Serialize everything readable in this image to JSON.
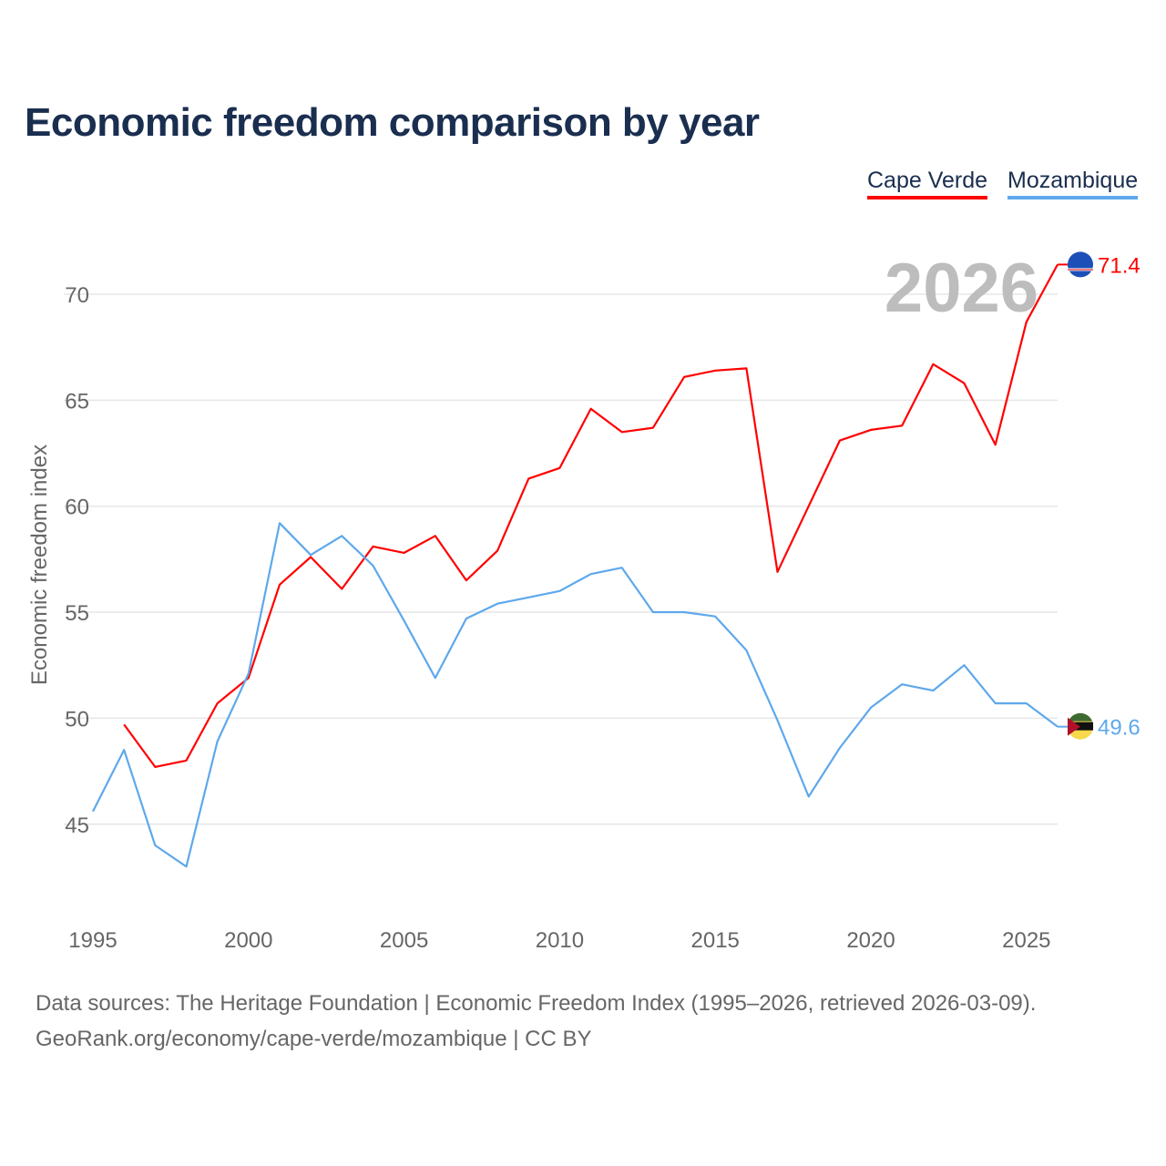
{
  "title": "Economic freedom comparison by year",
  "legend": [
    {
      "name": "Cape Verde",
      "color": "#ff0000"
    },
    {
      "name": "Mozambique",
      "color": "#5ea8ec"
    }
  ],
  "footer": {
    "line1": "Data sources: The Heritage Foundation | Economic Freedom Index (1995–2026, retrieved 2026-03-09).",
    "line2": "GeoRank.org/economy/cape-verde/mozambique | CC BY"
  },
  "chart_data": {
    "type": "line",
    "title": "Economic freedom comparison by year",
    "xlabel": "",
    "ylabel": "Economic freedom index",
    "year_watermark": "2026",
    "xlim": [
      1995,
      2026
    ],
    "ylim": [
      41,
      72
    ],
    "xticks": [
      1995,
      2000,
      2005,
      2010,
      2015,
      2020,
      2025
    ],
    "yticks": [
      45,
      50,
      55,
      60,
      65,
      70
    ],
    "grid": true,
    "legend_position": "top-right",
    "series": [
      {
        "name": "Cape Verde",
        "color": "#ff0000",
        "end_label": "71.4",
        "x": [
          1996,
          1997,
          1998,
          1999,
          2000,
          2001,
          2002,
          2003,
          2004,
          2005,
          2006,
          2007,
          2008,
          2009,
          2010,
          2011,
          2012,
          2013,
          2014,
          2015,
          2016,
          2017,
          2018,
          2019,
          2020,
          2021,
          2022,
          2023,
          2024,
          2025,
          2026
        ],
        "values": [
          49.7,
          47.7,
          48.0,
          50.7,
          51.9,
          56.3,
          57.6,
          56.1,
          58.1,
          57.8,
          58.6,
          56.5,
          57.9,
          61.3,
          61.8,
          64.6,
          63.5,
          63.7,
          66.1,
          66.4,
          66.5,
          56.9,
          60.0,
          63.1,
          63.6,
          63.8,
          66.7,
          65.8,
          62.9,
          68.7,
          71.4
        ]
      },
      {
        "name": "Mozambique",
        "color": "#5ea8ec",
        "end_label": "49.6",
        "x": [
          1995,
          1996,
          1997,
          1998,
          1999,
          2000,
          2001,
          2002,
          2003,
          2004,
          2005,
          2006,
          2007,
          2008,
          2009,
          2010,
          2011,
          2012,
          2013,
          2014,
          2015,
          2016,
          2017,
          2018,
          2019,
          2020,
          2021,
          2022,
          2023,
          2024,
          2025,
          2026
        ],
        "values": [
          45.6,
          48.5,
          44.0,
          43.0,
          48.9,
          52.1,
          59.2,
          57.7,
          58.6,
          57.2,
          54.6,
          51.9,
          54.7,
          55.4,
          55.7,
          56.0,
          56.8,
          57.1,
          55.0,
          55.0,
          54.8,
          53.2,
          49.9,
          46.3,
          48.6,
          50.5,
          51.6,
          51.3,
          52.5,
          50.7,
          50.7,
          49.6
        ]
      }
    ]
  }
}
